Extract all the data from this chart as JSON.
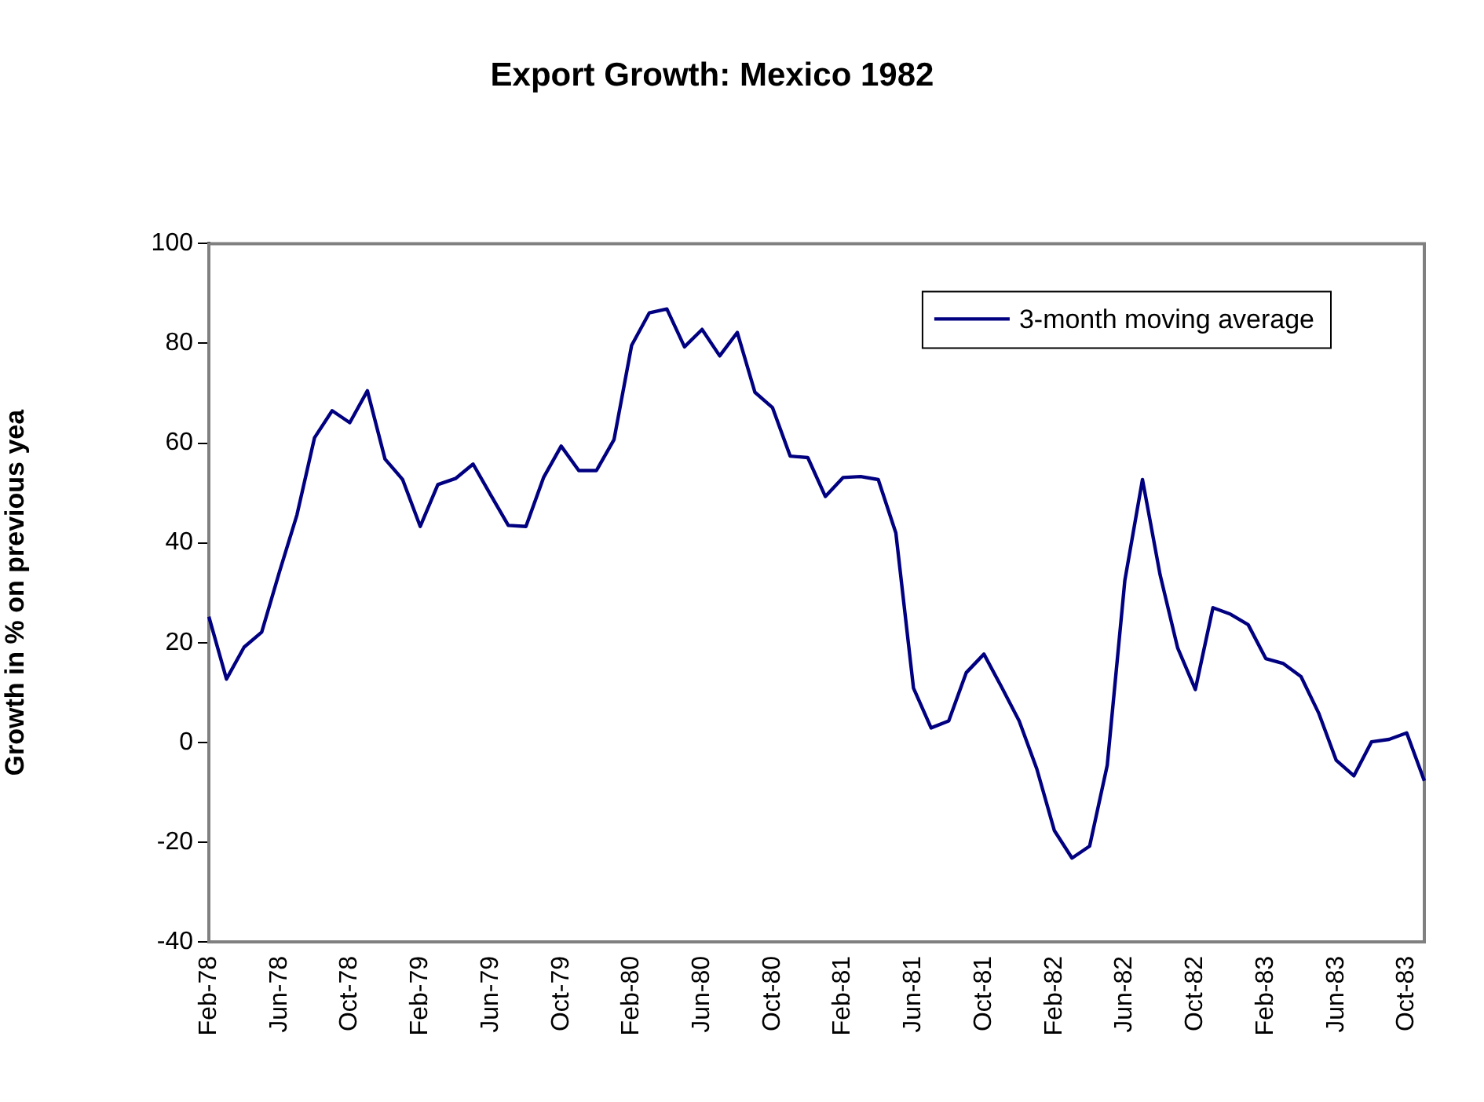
{
  "chart_data": {
    "type": "line",
    "title": "Export Growth: Mexico 1982",
    "ylabel": "Growth in % on previous yea",
    "categories": [
      "Feb-78",
      null,
      null,
      null,
      "Jun-78",
      null,
      null,
      null,
      "Oct-78",
      null,
      null,
      null,
      "Feb-79",
      null,
      null,
      null,
      "Jun-79",
      null,
      null,
      null,
      "Oct-79",
      null,
      null,
      null,
      "Feb-80",
      null,
      null,
      null,
      "Jun-80",
      null,
      null,
      null,
      "Oct-80",
      null,
      null,
      null,
      "Feb-81",
      null,
      null,
      null,
      "Jun-81",
      null,
      null,
      null,
      "Oct-81",
      null,
      null,
      null,
      "Feb-82",
      null,
      null,
      null,
      "Jun-82",
      null,
      null,
      null,
      "Oct-82",
      null,
      null,
      null,
      "Feb-83",
      null,
      null,
      null,
      "Jun-83",
      null,
      null,
      null,
      "Oct-83",
      null
    ],
    "series": [
      {
        "name": "3-month moving average",
        "color": "#000080",
        "values": [
          25.2,
          12.7,
          19.1,
          22.1,
          34.1,
          45.6,
          61.1,
          66.5,
          64.1,
          70.5,
          56.8,
          52.7,
          43.3,
          51.7,
          52.9,
          55.8,
          49.6,
          43.5,
          43.3,
          53.1,
          59.4,
          54.5,
          54.5,
          60.7,
          79.6,
          86.1,
          86.9,
          79.3,
          82.8,
          77.5,
          82.2,
          70.2,
          67.1,
          57.4,
          57.1,
          49.3,
          53.1,
          53.3,
          52.7,
          42.0,
          10.9,
          2.9,
          4.3,
          14.0,
          17.7,
          11.1,
          4.3,
          -5.3,
          -17.7,
          -23.2,
          -20.8,
          -4.6,
          32.5,
          52.7,
          33.6,
          18.9,
          10.6,
          27.0,
          25.7,
          23.6,
          16.8,
          15.8,
          13.2,
          5.9,
          -3.6,
          -6.7,
          0.1,
          0.6,
          1.9,
          -7.7
        ]
      }
    ],
    "ylim": [
      -40,
      100
    ],
    "yticks": [
      -40,
      -20,
      0,
      20,
      40,
      60,
      80,
      100
    ],
    "legend": "top right",
    "marker": "none",
    "line_style": "solid"
  }
}
